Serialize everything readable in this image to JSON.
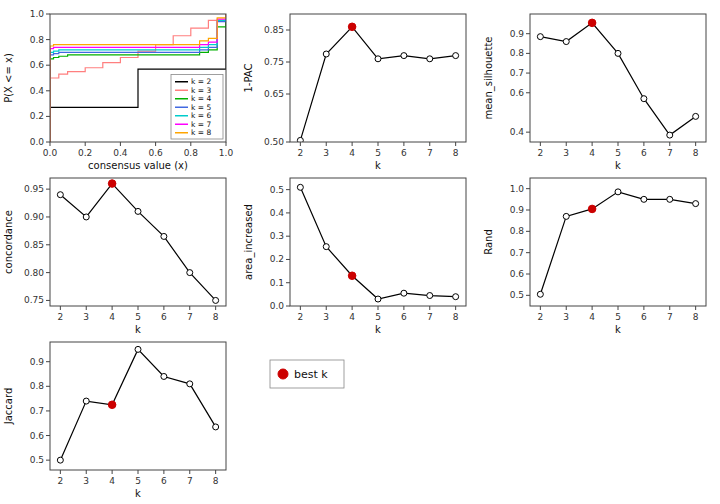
{
  "chart_data": [
    {
      "type": "step",
      "xlabel": "consensus value (x)",
      "ylabel": "P(X <= x)",
      "xlim": [
        0,
        1
      ],
      "ylim": [
        0,
        1
      ],
      "xticks": [
        {
          "value": 0.0,
          "label": "0.0"
        },
        0.2,
        0.4,
        0.6,
        0.8,
        {
          "value": 1.0,
          "label": "1.0"
        }
      ],
      "yticks": [
        {
          "value": 0.0,
          "label": "0.0"
        },
        0.2,
        0.4,
        0.6,
        0.8,
        {
          "value": 1.0,
          "label": "1.0"
        }
      ],
      "legend": "lower right",
      "series": [
        {
          "name": "k = 2",
          "color": "#000000",
          "x": [
            0.0,
            0.0,
            0.01,
            0.49,
            0.5,
            0.99,
            1.0,
            1.0
          ],
          "values": [
            0.0,
            0.27,
            0.27,
            0.27,
            0.57,
            0.57,
            0.57,
            1.0
          ]
        },
        {
          "name": "k = 3",
          "color": "#ff7f7f",
          "x": [
            0.0,
            0.0,
            0.05,
            0.1,
            0.2,
            0.3,
            0.4,
            0.5,
            0.6,
            0.7,
            0.8,
            0.9,
            1.0,
            1.0
          ],
          "values": [
            0.0,
            0.5,
            0.53,
            0.55,
            0.58,
            0.62,
            0.66,
            0.71,
            0.76,
            0.83,
            0.89,
            0.95,
            0.97,
            1.0
          ]
        },
        {
          "name": "k = 4",
          "color": "#00b000",
          "x": [
            0.0,
            0.0,
            0.02,
            0.05,
            0.1,
            0.85,
            0.9,
            0.95,
            1.0,
            1.0
          ],
          "values": [
            0.0,
            0.65,
            0.66,
            0.67,
            0.68,
            0.7,
            0.72,
            0.9,
            0.97,
            1.0
          ]
        },
        {
          "name": "k = 5",
          "color": "#4169e1",
          "x": [
            0.0,
            0.0,
            0.02,
            0.05,
            0.85,
            0.9,
            0.95,
            1.0,
            1.0
          ],
          "values": [
            0.0,
            0.68,
            0.69,
            0.7,
            0.72,
            0.74,
            0.94,
            0.98,
            1.0
          ]
        },
        {
          "name": "k = 6",
          "color": "#00cccc",
          "x": [
            0.0,
            0.0,
            0.02,
            0.05,
            0.85,
            0.9,
            0.95,
            1.0,
            1.0
          ],
          "values": [
            0.0,
            0.7,
            0.71,
            0.72,
            0.74,
            0.76,
            0.95,
            0.99,
            1.0
          ]
        },
        {
          "name": "k = 7",
          "color": "#ff00ff",
          "x": [
            0.0,
            0.0,
            0.02,
            0.85,
            0.9,
            0.95,
            1.0,
            1.0
          ],
          "values": [
            0.0,
            0.73,
            0.74,
            0.76,
            0.78,
            0.96,
            0.99,
            1.0
          ]
        },
        {
          "name": "k = 8",
          "color": "#ffa500",
          "x": [
            0.0,
            0.0,
            0.02,
            0.85,
            0.9,
            0.95,
            1.0,
            1.0
          ],
          "values": [
            0.0,
            0.75,
            0.76,
            0.79,
            0.81,
            0.97,
            0.99,
            1.0
          ]
        }
      ]
    },
    {
      "type": "line",
      "xlabel": "k",
      "ylabel": "1-PAC",
      "x": [
        2,
        3,
        4,
        5,
        6,
        7,
        8
      ],
      "xlim": [
        1.6,
        8.4
      ],
      "xticks": [
        2,
        3,
        4,
        5,
        6,
        7,
        8
      ],
      "ylim": [
        0.5,
        0.9
      ],
      "yticks": [
        {
          "value": 0.5,
          "label": "0.50"
        },
        0.65,
        0.75,
        0.85
      ],
      "best_k": 4,
      "series": [
        {
          "color": "#000000",
          "marker": "circle",
          "values": [
            0.505,
            0.775,
            0.86,
            0.76,
            0.77,
            0.76,
            0.77
          ]
        }
      ]
    },
    {
      "type": "line",
      "xlabel": "k",
      "ylabel": "mean_silhouette",
      "x": [
        2,
        3,
        4,
        5,
        6,
        7,
        8
      ],
      "xlim": [
        1.6,
        8.4
      ],
      "xticks": [
        2,
        3,
        4,
        5,
        6,
        7,
        8
      ],
      "ylim": [
        0.35,
        1.0
      ],
      "yticks": [
        0.4,
        0.6,
        0.7,
        0.8,
        0.9
      ],
      "best_k": 4,
      "series": [
        {
          "color": "#000000",
          "marker": "circle",
          "values": [
            0.885,
            0.86,
            0.955,
            0.8,
            0.57,
            0.385,
            0.48
          ]
        }
      ]
    },
    {
      "type": "line",
      "xlabel": "k",
      "ylabel": "concordance",
      "x": [
        2,
        3,
        4,
        5,
        6,
        7,
        8
      ],
      "xlim": [
        1.6,
        8.4
      ],
      "xticks": [
        2,
        3,
        4,
        5,
        6,
        7,
        8
      ],
      "ylim": [
        0.74,
        0.97
      ],
      "yticks": [
        0.75,
        {
          "value": 0.8,
          "label": "0.80"
        },
        0.85,
        {
          "value": 0.9,
          "label": "0.90"
        },
        0.95
      ],
      "best_k": 4,
      "series": [
        {
          "color": "#000000",
          "marker": "circle",
          "values": [
            0.94,
            0.9,
            0.96,
            0.91,
            0.865,
            0.8,
            0.75
          ]
        }
      ]
    },
    {
      "type": "line",
      "xlabel": "k",
      "ylabel": "area_increased",
      "x": [
        2,
        3,
        4,
        5,
        6,
        7,
        8
      ],
      "xlim": [
        1.6,
        8.4
      ],
      "xticks": [
        2,
        3,
        4,
        5,
        6,
        7,
        8
      ],
      "ylim": [
        0.0,
        0.55
      ],
      "yticks": [
        {
          "value": 0.0,
          "label": "0.0"
        },
        0.1,
        0.2,
        0.3,
        0.4,
        0.5
      ],
      "best_k": 4,
      "series": [
        {
          "color": "#000000",
          "marker": "circle",
          "values": [
            0.51,
            0.255,
            0.13,
            0.03,
            0.055,
            0.045,
            0.04
          ]
        }
      ]
    },
    {
      "type": "line",
      "xlabel": "k",
      "ylabel": "Rand",
      "x": [
        2,
        3,
        4,
        5,
        6,
        7,
        8
      ],
      "xlim": [
        1.6,
        8.4
      ],
      "xticks": [
        2,
        3,
        4,
        5,
        6,
        7,
        8
      ],
      "ylim": [
        0.45,
        1.05
      ],
      "yticks": [
        0.5,
        0.6,
        0.7,
        0.8,
        0.9,
        {
          "value": 1.0,
          "label": "1.0"
        }
      ],
      "best_k": 4,
      "series": [
        {
          "color": "#000000",
          "marker": "circle",
          "values": [
            0.505,
            0.87,
            0.905,
            0.985,
            0.95,
            0.95,
            0.93
          ]
        }
      ]
    },
    {
      "type": "line",
      "xlabel": "k",
      "ylabel": "Jaccard",
      "x": [
        2,
        3,
        4,
        5,
        6,
        7,
        8
      ],
      "xlim": [
        1.6,
        8.4
      ],
      "xticks": [
        2,
        3,
        4,
        5,
        6,
        7,
        8
      ],
      "ylim": [
        0.46,
        0.98
      ],
      "yticks": [
        0.5,
        0.6,
        0.7,
        0.8,
        0.9
      ],
      "best_k": 4,
      "series": [
        {
          "color": "#000000",
          "marker": "circle",
          "values": [
            0.5,
            0.74,
            0.725,
            0.95,
            0.84,
            0.81,
            0.635
          ]
        }
      ]
    },
    {
      "type": "legend",
      "series": [
        {
          "name": "best k",
          "color": "#cc0000",
          "marker": "circle"
        }
      ]
    }
  ]
}
